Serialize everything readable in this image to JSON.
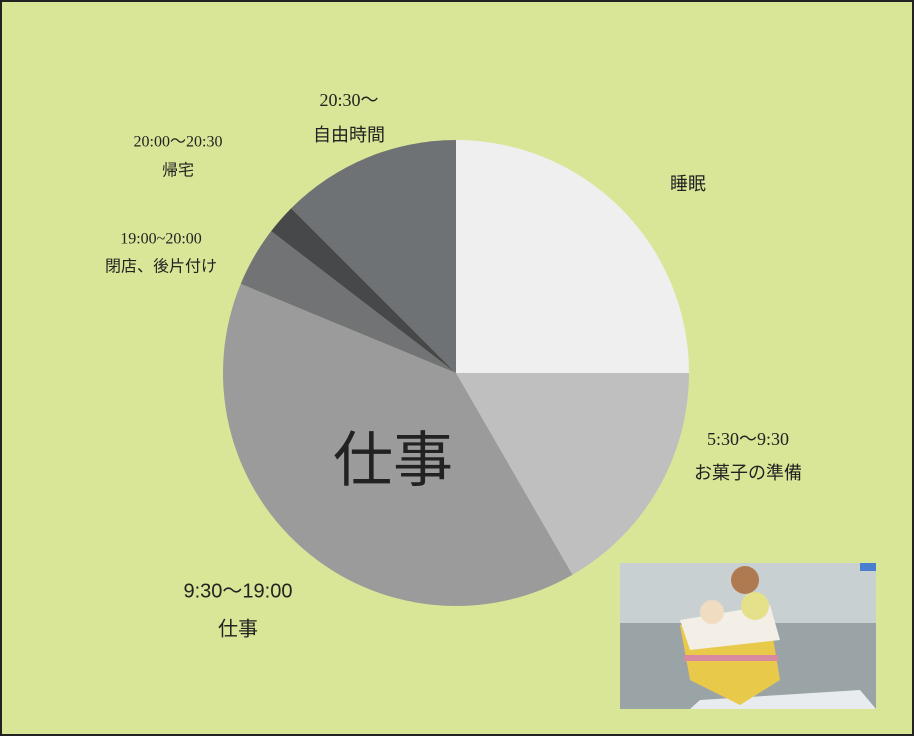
{
  "chart_data": {
    "type": "pie",
    "categories": [
      "睡眠",
      "お菓子の準備",
      "仕事",
      "閉店、後片付け",
      "帰宅",
      "自由時間"
    ],
    "times": [
      null,
      "5:30～9:30",
      "9:30～19:00",
      "19:00~20:00",
      "20:00～20:30",
      "20:30～"
    ],
    "values": [
      6,
      4,
      9.5,
      1,
      0.5,
      3
    ],
    "colors": [
      "#efefef",
      "#bfbfbf",
      "#9b9b9b",
      "#717375",
      "#47484a",
      "#6f7275"
    ],
    "annotation": "仕事"
  }
}
